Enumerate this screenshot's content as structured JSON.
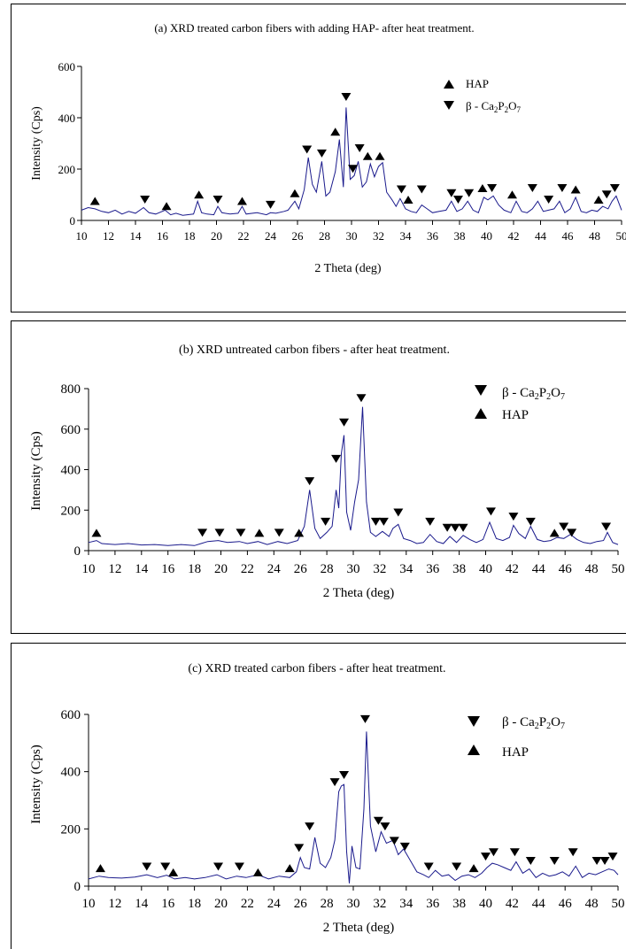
{
  "chart_data": [
    {
      "type": "line",
      "title": "(a) XRD treated carbon fibers with adding HAP- after heat treatment.",
      "xlabel": "2 Theta (deg)",
      "ylabel": "Intensity (Cps)",
      "xlim": [
        10,
        50
      ],
      "ylim": [
        0,
        600
      ],
      "xticks": [
        10,
        12,
        14,
        16,
        18,
        20,
        22,
        24,
        26,
        28,
        30,
        32,
        34,
        36,
        38,
        40,
        42,
        44,
        46,
        48,
        50
      ],
      "yticks": [
        0,
        200,
        400,
        600
      ],
      "line_color": "#1a1a8c",
      "legend": [
        {
          "marker": "up",
          "label": "HAP"
        },
        {
          "marker": "down",
          "label_main": "β - Ca",
          "label_sub1": "2",
          "label_mid1": "P",
          "label_sub2": "2",
          "label_mid2": "O",
          "label_sub3": "7"
        }
      ],
      "series": [
        {
          "x": [
            10,
            10.5,
            11,
            11.5,
            12,
            12.5,
            13,
            13.5,
            14,
            14.6,
            15,
            15.5,
            16.2,
            16.6,
            17,
            17.5,
            18.3,
            18.6,
            18.9,
            19.3,
            19.8,
            20.1,
            20.4,
            21,
            21.6,
            21.9,
            22.2,
            23,
            23.7,
            24,
            24.4,
            25,
            25.3,
            25.8,
            26.1,
            26.5,
            26.8,
            27.1,
            27.4,
            27.8,
            28.1,
            28.4,
            28.8,
            29.1,
            29.4,
            29.6,
            29.9,
            30.2,
            30.5,
            30.8,
            31.1,
            31.4,
            31.7,
            32,
            32.3,
            32.6,
            33,
            33.3,
            33.6,
            34,
            34.4,
            34.8,
            35.2,
            35.6,
            36,
            36.5,
            37,
            37.4,
            37.8,
            38.2,
            38.6,
            39,
            39.4,
            39.8,
            40.1,
            40.5,
            40.9,
            41.3,
            41.8,
            42.2,
            42.6,
            43,
            43.4,
            43.8,
            44.2,
            44.6,
            45,
            45.4,
            45.8,
            46.2,
            46.6,
            47,
            47.4,
            47.8,
            48.2,
            48.6,
            49,
            49.3,
            49.6,
            50
          ],
          "y": [
            40,
            50,
            45,
            35,
            30,
            40,
            25,
            35,
            28,
            50,
            30,
            25,
            40,
            22,
            28,
            20,
            25,
            75,
            30,
            25,
            22,
            55,
            30,
            25,
            28,
            55,
            25,
            30,
            22,
            30,
            28,
            35,
            40,
            75,
            45,
            120,
            245,
            140,
            110,
            230,
            95,
            110,
            190,
            315,
            130,
            440,
            160,
            175,
            230,
            130,
            150,
            220,
            170,
            210,
            225,
            110,
            80,
            55,
            85,
            45,
            35,
            30,
            60,
            45,
            30,
            35,
            40,
            75,
            35,
            45,
            75,
            40,
            30,
            90,
            80,
            95,
            60,
            40,
            30,
            75,
            35,
            30,
            45,
            75,
            35,
            40,
            45,
            75,
            30,
            45,
            90,
            35,
            30,
            40,
            35,
            55,
            45,
            75,
            95,
            40
          ]
        }
      ],
      "markers": [
        {
          "x": 11,
          "y": 50,
          "dir": "up"
        },
        {
          "x": 14.7,
          "y": 55,
          "dir": "down"
        },
        {
          "x": 16.3,
          "y": 30,
          "dir": "up"
        },
        {
          "x": 18.7,
          "y": 75,
          "dir": "up"
        },
        {
          "x": 20.1,
          "y": 55,
          "dir": "down"
        },
        {
          "x": 21.9,
          "y": 50,
          "dir": "up"
        },
        {
          "x": 24,
          "y": 35,
          "dir": "down"
        },
        {
          "x": 25.8,
          "y": 80,
          "dir": "up"
        },
        {
          "x": 26.7,
          "y": 250,
          "dir": "down"
        },
        {
          "x": 27.8,
          "y": 235,
          "dir": "down"
        },
        {
          "x": 28.8,
          "y": 320,
          "dir": "up"
        },
        {
          "x": 29.6,
          "y": 455,
          "dir": "down"
        },
        {
          "x": 30.1,
          "y": 175,
          "dir": "down"
        },
        {
          "x": 30.6,
          "y": 255,
          "dir": "down"
        },
        {
          "x": 31.2,
          "y": 225,
          "dir": "up"
        },
        {
          "x": 32.1,
          "y": 225,
          "dir": "up"
        },
        {
          "x": 33.7,
          "y": 95,
          "dir": "down"
        },
        {
          "x": 34.2,
          "y": 55,
          "dir": "up"
        },
        {
          "x": 35.2,
          "y": 95,
          "dir": "down"
        },
        {
          "x": 37.4,
          "y": 80,
          "dir": "down"
        },
        {
          "x": 37.9,
          "y": 55,
          "dir": "down"
        },
        {
          "x": 38.7,
          "y": 80,
          "dir": "down"
        },
        {
          "x": 39.7,
          "y": 100,
          "dir": "up"
        },
        {
          "x": 40.4,
          "y": 100,
          "dir": "down"
        },
        {
          "x": 41.9,
          "y": 75,
          "dir": "up"
        },
        {
          "x": 43.4,
          "y": 100,
          "dir": "down"
        },
        {
          "x": 44.6,
          "y": 55,
          "dir": "down"
        },
        {
          "x": 45.6,
          "y": 100,
          "dir": "down"
        },
        {
          "x": 46.6,
          "y": 95,
          "dir": "up"
        },
        {
          "x": 48.3,
          "y": 55,
          "dir": "up"
        },
        {
          "x": 48.9,
          "y": 75,
          "dir": "down"
        },
        {
          "x": 49.5,
          "y": 100,
          "dir": "down"
        }
      ]
    },
    {
      "type": "line",
      "title": "(b) XRD untreated carbon fibers - after heat treatment.",
      "xlabel": "2 Theta (deg)",
      "ylabel": "Intensity (Cps)",
      "xlim": [
        10,
        50
      ],
      "ylim": [
        0,
        800
      ],
      "xticks": [
        10,
        12,
        14,
        16,
        18,
        20,
        22,
        24,
        26,
        28,
        30,
        32,
        34,
        36,
        38,
        40,
        42,
        44,
        46,
        48,
        50
      ],
      "yticks": [
        0,
        200,
        400,
        600,
        800
      ],
      "line_color": "#1a1a8c",
      "legend": [
        {
          "marker": "down",
          "label_main": "β - Ca",
          "label_sub1": "2",
          "label_mid1": "P",
          "label_sub2": "2",
          "label_mid2": "O",
          "label_sub3": "7"
        },
        {
          "marker": "up",
          "label": "HAP"
        }
      ],
      "series": [
        {
          "x": [
            10,
            10.6,
            11,
            12,
            13,
            14,
            15,
            16,
            17,
            18,
            18.5,
            19,
            19.8,
            20.5,
            21.4,
            22,
            22.8,
            23.5,
            24.3,
            25,
            25.8,
            26.3,
            26.7,
            27.1,
            27.5,
            28,
            28.4,
            28.7,
            28.9,
            29.1,
            29.3,
            29.5,
            29.8,
            30.1,
            30.4,
            30.7,
            31,
            31.3,
            31.7,
            32.2,
            32.7,
            33,
            33.4,
            33.8,
            34.3,
            34.8,
            35.3,
            35.8,
            36.3,
            36.8,
            37.3,
            37.8,
            38.3,
            38.8,
            39.3,
            39.8,
            40.3,
            40.8,
            41.3,
            41.8,
            42.1,
            42.5,
            43,
            43.4,
            43.9,
            44.4,
            44.9,
            45.4,
            45.9,
            46.4,
            46.9,
            47.4,
            47.9,
            48.4,
            48.9,
            49.2,
            49.6,
            50
          ],
          "y": [
            40,
            50,
            35,
            30,
            35,
            28,
            30,
            25,
            30,
            25,
            35,
            45,
            50,
            40,
            45,
            35,
            45,
            30,
            45,
            35,
            50,
            120,
            300,
            110,
            60,
            90,
            120,
            300,
            210,
            480,
            570,
            190,
            100,
            240,
            350,
            710,
            240,
            90,
            70,
            95,
            70,
            110,
            130,
            60,
            50,
            35,
            40,
            80,
            45,
            35,
            70,
            40,
            75,
            55,
            40,
            55,
            140,
            60,
            50,
            65,
            125,
            85,
            60,
            120,
            55,
            45,
            50,
            65,
            60,
            80,
            55,
            40,
            35,
            45,
            50,
            90,
            40,
            30
          ]
        }
      ],
      "markers": [
        {
          "x": 10.6,
          "y": 55,
          "dir": "up"
        },
        {
          "x": 18.6,
          "y": 55,
          "dir": "down"
        },
        {
          "x": 19.9,
          "y": 55,
          "dir": "down"
        },
        {
          "x": 21.5,
          "y": 55,
          "dir": "down"
        },
        {
          "x": 22.9,
          "y": 55,
          "dir": "up"
        },
        {
          "x": 24.4,
          "y": 55,
          "dir": "down"
        },
        {
          "x": 25.9,
          "y": 55,
          "dir": "up"
        },
        {
          "x": 26.7,
          "y": 310,
          "dir": "down"
        },
        {
          "x": 27.9,
          "y": 110,
          "dir": "down"
        },
        {
          "x": 28.7,
          "y": 420,
          "dir": "down"
        },
        {
          "x": 29.3,
          "y": 600,
          "dir": "down"
        },
        {
          "x": 30.6,
          "y": 720,
          "dir": "down"
        },
        {
          "x": 31.7,
          "y": 110,
          "dir": "down"
        },
        {
          "x": 32.3,
          "y": 110,
          "dir": "down"
        },
        {
          "x": 33.4,
          "y": 155,
          "dir": "down"
        },
        {
          "x": 35.8,
          "y": 110,
          "dir": "down"
        },
        {
          "x": 37.1,
          "y": 80,
          "dir": "down"
        },
        {
          "x": 37.7,
          "y": 80,
          "dir": "down"
        },
        {
          "x": 38.3,
          "y": 80,
          "dir": "down"
        },
        {
          "x": 40.4,
          "y": 160,
          "dir": "down"
        },
        {
          "x": 42.1,
          "y": 135,
          "dir": "down"
        },
        {
          "x": 43.4,
          "y": 110,
          "dir": "down"
        },
        {
          "x": 45.2,
          "y": 55,
          "dir": "up"
        },
        {
          "x": 45.9,
          "y": 85,
          "dir": "down"
        },
        {
          "x": 46.5,
          "y": 55,
          "dir": "down"
        },
        {
          "x": 49.1,
          "y": 85,
          "dir": "down"
        }
      ]
    },
    {
      "type": "line",
      "title": "(c) XRD treated carbon fibers - after heat treatment.",
      "xlabel": "2 Theta (deg)",
      "ylabel": "Intensity (Cps)",
      "xlim": [
        10,
        50
      ],
      "ylim": [
        0,
        600
      ],
      "xticks": [
        10,
        12,
        14,
        16,
        18,
        20,
        22,
        24,
        26,
        28,
        30,
        32,
        34,
        36,
        38,
        40,
        42,
        44,
        46,
        48,
        50
      ],
      "yticks": [
        0,
        200,
        400,
        600
      ],
      "line_color": "#1a1a8c",
      "legend": [
        {
          "marker": "down",
          "label_main": "β - Ca",
          "label_sub1": "2",
          "label_mid1": "P",
          "label_sub2": "2",
          "label_mid2": "O",
          "label_sub3": "7"
        },
        {
          "marker": "up",
          "label": "HAP"
        }
      ],
      "series": [
        {
          "x": [
            10,
            10.8,
            11.5,
            12.5,
            13.5,
            14.4,
            15.2,
            15.9,
            16.5,
            17.3,
            18,
            18.8,
            19.7,
            20.4,
            21.2,
            21.9,
            22.8,
            23.6,
            24.4,
            25.2,
            25.7,
            26,
            26.3,
            26.7,
            27.1,
            27.5,
            27.9,
            28.3,
            28.6,
            28.9,
            29.1,
            29.3,
            29.5,
            29.7,
            29.9,
            30.2,
            30.5,
            30.8,
            31,
            31.3,
            31.7,
            32.1,
            32.5,
            33,
            33.4,
            33.8,
            34.3,
            34.8,
            35.3,
            35.7,
            36.2,
            36.7,
            37.2,
            37.7,
            38.2,
            38.7,
            39.2,
            39.7,
            40.1,
            40.5,
            40.9,
            41.4,
            41.9,
            42.3,
            42.8,
            43.3,
            43.8,
            44.3,
            44.8,
            45.3,
            45.8,
            46.3,
            46.8,
            47.3,
            47.8,
            48.3,
            48.8,
            49.3,
            49.7,
            50
          ],
          "y": [
            25,
            35,
            30,
            28,
            32,
            40,
            30,
            38,
            25,
            30,
            25,
            30,
            40,
            25,
            35,
            30,
            40,
            25,
            35,
            30,
            50,
            100,
            65,
            60,
            170,
            80,
            65,
            100,
            160,
            330,
            350,
            355,
            120,
            10,
            140,
            65,
            60,
            270,
            540,
            210,
            120,
            190,
            150,
            160,
            110,
            130,
            90,
            50,
            40,
            30,
            55,
            35,
            40,
            20,
            35,
            40,
            30,
            45,
            65,
            80,
            75,
            65,
            55,
            85,
            45,
            60,
            30,
            45,
            35,
            40,
            50,
            35,
            70,
            30,
            45,
            40,
            50,
            60,
            55,
            40
          ]
        }
      ],
      "markers": [
        {
          "x": 10.9,
          "y": 40,
          "dir": "up"
        },
        {
          "x": 14.4,
          "y": 45,
          "dir": "down"
        },
        {
          "x": 15.8,
          "y": 45,
          "dir": "down"
        },
        {
          "x": 16.4,
          "y": 25,
          "dir": "up"
        },
        {
          "x": 19.8,
          "y": 45,
          "dir": "down"
        },
        {
          "x": 21.4,
          "y": 45,
          "dir": "down"
        },
        {
          "x": 22.8,
          "y": 25,
          "dir": "up"
        },
        {
          "x": 25.2,
          "y": 40,
          "dir": "up"
        },
        {
          "x": 25.9,
          "y": 110,
          "dir": "down"
        },
        {
          "x": 26.7,
          "y": 185,
          "dir": "down"
        },
        {
          "x": 28.6,
          "y": 340,
          "dir": "down"
        },
        {
          "x": 29.3,
          "y": 365,
          "dir": "down"
        },
        {
          "x": 30.9,
          "y": 560,
          "dir": "down"
        },
        {
          "x": 31.9,
          "y": 205,
          "dir": "down"
        },
        {
          "x": 32.4,
          "y": 185,
          "dir": "down"
        },
        {
          "x": 33.1,
          "y": 135,
          "dir": "down"
        },
        {
          "x": 33.9,
          "y": 115,
          "dir": "down"
        },
        {
          "x": 35.7,
          "y": 45,
          "dir": "down"
        },
        {
          "x": 37.8,
          "y": 45,
          "dir": "down"
        },
        {
          "x": 39.1,
          "y": 40,
          "dir": "up"
        },
        {
          "x": 40,
          "y": 80,
          "dir": "down"
        },
        {
          "x": 40.6,
          "y": 95,
          "dir": "down"
        },
        {
          "x": 42.2,
          "y": 95,
          "dir": "down"
        },
        {
          "x": 43.4,
          "y": 65,
          "dir": "down"
        },
        {
          "x": 45.2,
          "y": 65,
          "dir": "down"
        },
        {
          "x": 46.6,
          "y": 95,
          "dir": "down"
        },
        {
          "x": 48.4,
          "y": 65,
          "dir": "down"
        },
        {
          "x": 49,
          "y": 65,
          "dir": "down"
        },
        {
          "x": 49.6,
          "y": 80,
          "dir": "down"
        }
      ]
    }
  ]
}
